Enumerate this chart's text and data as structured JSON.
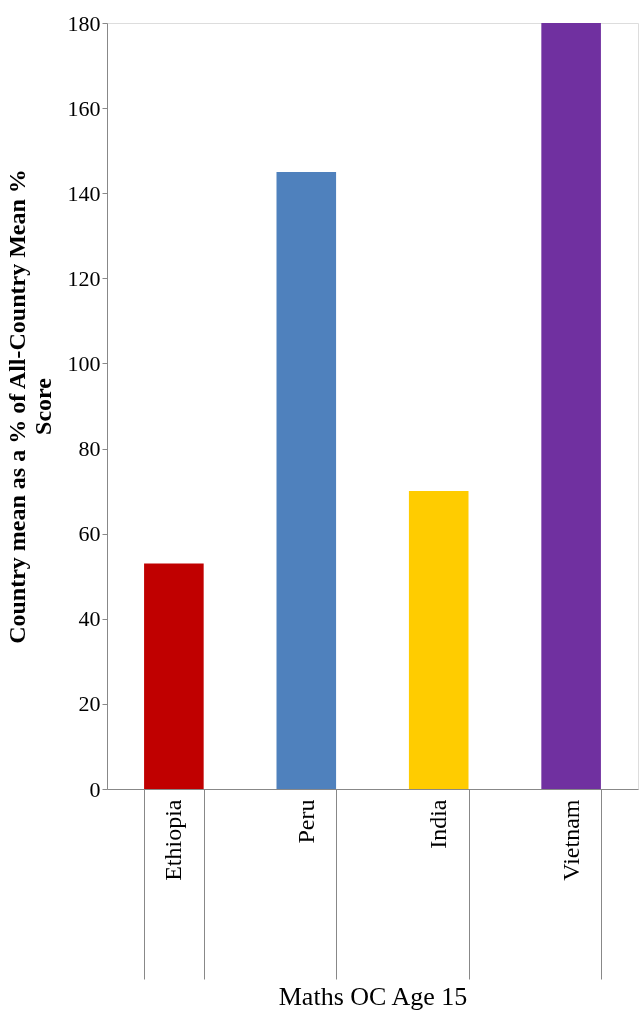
{
  "chart_data": {
    "type": "bar",
    "categories": [
      "Ethiopia",
      "Peru",
      "India",
      "Vietnam"
    ],
    "values": [
      53,
      145,
      70,
      180
    ],
    "colors": [
      "#c00000",
      "#4f81bd",
      "#ffcc00",
      "#7030a0"
    ],
    "xlabel": "Maths OC Age 15",
    "ylabel": "Country mean as a % of All-Country Mean % Score",
    "ylim": [
      0,
      180
    ],
    "yticks": [
      0,
      20,
      40,
      60,
      80,
      100,
      120,
      140,
      160,
      180
    ],
    "grid": false
  }
}
